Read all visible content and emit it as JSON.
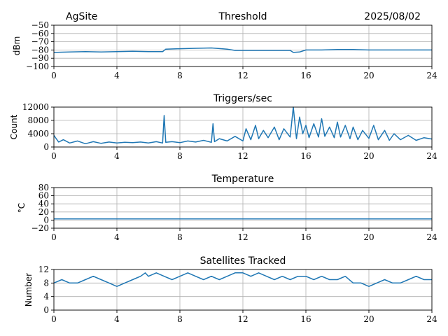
{
  "header": {
    "site": "AgSite",
    "date": "2025/08/02"
  },
  "style": {
    "line_color": "#1f77b4",
    "grid_color": "#b0b0b0"
  },
  "chart_data": [
    {
      "type": "line",
      "title": "Threshold",
      "ylabel": "dBm",
      "xlim": [
        0,
        24
      ],
      "ylim": [
        -100,
        -50
      ],
      "xticks": [
        0,
        4,
        8,
        12,
        16,
        20,
        24
      ],
      "yticks": [
        -100,
        -90,
        -80,
        -70,
        -60,
        -50
      ],
      "ytick_labels": [
        "−100",
        "−90",
        "−80",
        "−70",
        "−60",
        "−50"
      ],
      "grid": true,
      "series": [
        {
          "x": [
            0,
            1,
            2,
            3,
            4,
            5,
            6,
            6.9,
            7.1,
            8,
            9,
            10,
            11,
            11.5,
            12,
            13,
            14,
            15,
            15.2,
            15.6,
            16,
            17,
            18,
            19,
            20,
            21,
            22,
            23,
            24
          ],
          "y": [
            -83,
            -82.5,
            -82,
            -82.5,
            -82,
            -81.5,
            -82,
            -82,
            -79,
            -78.5,
            -78,
            -77.5,
            -79,
            -80.5,
            -80.5,
            -80.5,
            -80.5,
            -80.5,
            -83,
            -82.5,
            -80,
            -80,
            -79.5,
            -79.5,
            -80,
            -80,
            -80,
            -80,
            -80
          ]
        }
      ]
    },
    {
      "type": "line",
      "title": "Triggers/sec",
      "ylabel": "Count",
      "xlim": [
        0,
        24
      ],
      "ylim": [
        0,
        12000
      ],
      "xticks": [
        0,
        4,
        8,
        12,
        16,
        20,
        24
      ],
      "yticks": [
        0,
        4000,
        8000,
        12000
      ],
      "ytick_labels": [
        "0",
        "4000",
        "8000",
        "12000"
      ],
      "grid": true,
      "series": [
        {
          "x": [
            0,
            0.3,
            0.6,
            1,
            1.5,
            2,
            2.5,
            3,
            3.5,
            4,
            4.5,
            5,
            5.5,
            6,
            6.5,
            6.9,
            7.0,
            7.1,
            7.5,
            8,
            8.5,
            9,
            9.5,
            10,
            10.1,
            10.2,
            10.5,
            11,
            11.5,
            12,
            12.2,
            12.5,
            12.8,
            13,
            13.3,
            13.6,
            14,
            14.3,
            14.6,
            15,
            15.2,
            15.4,
            15.6,
            15.8,
            16,
            16.2,
            16.5,
            16.8,
            17,
            17.2,
            17.5,
            17.8,
            18,
            18.2,
            18.5,
            18.8,
            19,
            19.3,
            19.6,
            20,
            20.3,
            20.6,
            21,
            21.3,
            21.6,
            22,
            22.5,
            23,
            23.5,
            24
          ],
          "y": [
            3500,
            1500,
            2200,
            1200,
            1800,
            1000,
            1600,
            1100,
            1500,
            1200,
            1400,
            1300,
            1500,
            1200,
            1600,
            1200,
            9500,
            1400,
            1600,
            1300,
            1800,
            1500,
            2000,
            1400,
            7000,
            1600,
            2500,
            1800,
            3200,
            1800,
            5500,
            2200,
            6500,
            2500,
            5000,
            2800,
            6000,
            2200,
            5500,
            3000,
            12000,
            2500,
            9000,
            4000,
            6500,
            2800,
            7000,
            3000,
            8500,
            3200,
            6000,
            2800,
            7500,
            3000,
            6500,
            2500,
            6000,
            2200,
            5000,
            2600,
            6500,
            2200,
            5000,
            2000,
            4000,
            2200,
            3500,
            2000,
            2800,
            2400
          ]
        }
      ]
    },
    {
      "type": "line",
      "title": "Temperature",
      "ylabel": "°C",
      "xlim": [
        0,
        24
      ],
      "ylim": [
        -20,
        80
      ],
      "xticks": [
        0,
        4,
        8,
        12,
        16,
        20,
        24
      ],
      "yticks": [
        -20,
        0,
        20,
        40,
        60,
        80
      ],
      "ytick_labels": [
        "−20",
        "0",
        "20",
        "40",
        "60",
        "80"
      ],
      "grid": true,
      "series": [
        {
          "x": [
            0,
            24
          ],
          "y": [
            3,
            3
          ]
        }
      ]
    },
    {
      "type": "line",
      "title": "Satellites Tracked",
      "ylabel": "Number",
      "xlim": [
        0,
        24
      ],
      "ylim": [
        0,
        12
      ],
      "xticks": [
        0,
        4,
        8,
        12,
        16,
        20,
        24
      ],
      "yticks": [
        0,
        4,
        8,
        12
      ],
      "ytick_labels": [
        "0",
        "4",
        "8",
        "12"
      ],
      "grid": true,
      "series": [
        {
          "x": [
            0,
            0.5,
            1,
            1.5,
            2,
            2.5,
            3,
            3.5,
            4,
            4.5,
            5,
            5.5,
            5.8,
            6,
            6.5,
            7,
            7.5,
            8,
            8.5,
            9,
            9.5,
            10,
            10.5,
            11,
            11.5,
            12,
            12.5,
            13,
            13.5,
            14,
            14.5,
            15,
            15.5,
            16,
            16.5,
            17,
            17.5,
            18,
            18.5,
            19,
            19.5,
            20,
            20.5,
            21,
            21.5,
            22,
            22.5,
            23,
            23.5,
            24
          ],
          "y": [
            8,
            9,
            8,
            8,
            9,
            10,
            9,
            8,
            7,
            8,
            9,
            10,
            11,
            10,
            11,
            10,
            9,
            10,
            11,
            10,
            9,
            10,
            9,
            10,
            11,
            11,
            10,
            11,
            10,
            9,
            10,
            9,
            10,
            10,
            9,
            10,
            9,
            9,
            10,
            8,
            8,
            7,
            8,
            9,
            8,
            8,
            9,
            10,
            9,
            9
          ]
        }
      ]
    }
  ]
}
